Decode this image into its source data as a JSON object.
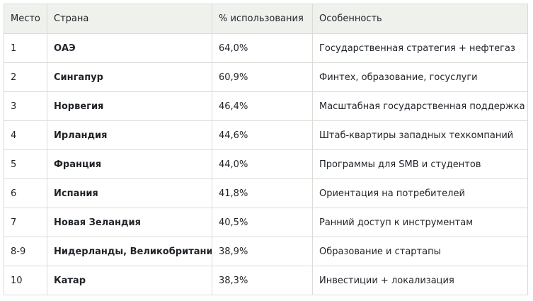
{
  "table": {
    "headers": [
      "Место",
      "Страна",
      "% использования",
      "Особенность"
    ],
    "rows": [
      {
        "rank": "1",
        "country": "ОАЭ",
        "usage": "64,0%",
        "feature": "Государственная стратегия + нефтегаз"
      },
      {
        "rank": "2",
        "country": "Сингапур",
        "usage": "60,9%",
        "feature": "Финтех, образование, госуслуги"
      },
      {
        "rank": "3",
        "country": "Норвегия",
        "usage": "46,4%",
        "feature": "Масштабная государственная поддержка"
      },
      {
        "rank": "4",
        "country": "Ирландия",
        "usage": "44,6%",
        "feature": "Штаб-квартиры западных техкомпаний"
      },
      {
        "rank": "5",
        "country": "Франция",
        "usage": "44,0%",
        "feature": "Программы для SMB и студентов"
      },
      {
        "rank": "6",
        "country": "Испания",
        "usage": "41,8%",
        "feature": "Ориентация на потребителей"
      },
      {
        "rank": "7",
        "country": "Новая Зеландия",
        "usage": "40,5%",
        "feature": "Ранний доступ к инструментам"
      },
      {
        "rank": "8-9",
        "country": "Нидерланды, Великобритания",
        "usage": "38,9%",
        "feature": "Образование и стартапы"
      },
      {
        "rank": "10",
        "country": "Катар",
        "usage": "38,3%",
        "feature": "Инвестиции + локализация"
      }
    ]
  }
}
